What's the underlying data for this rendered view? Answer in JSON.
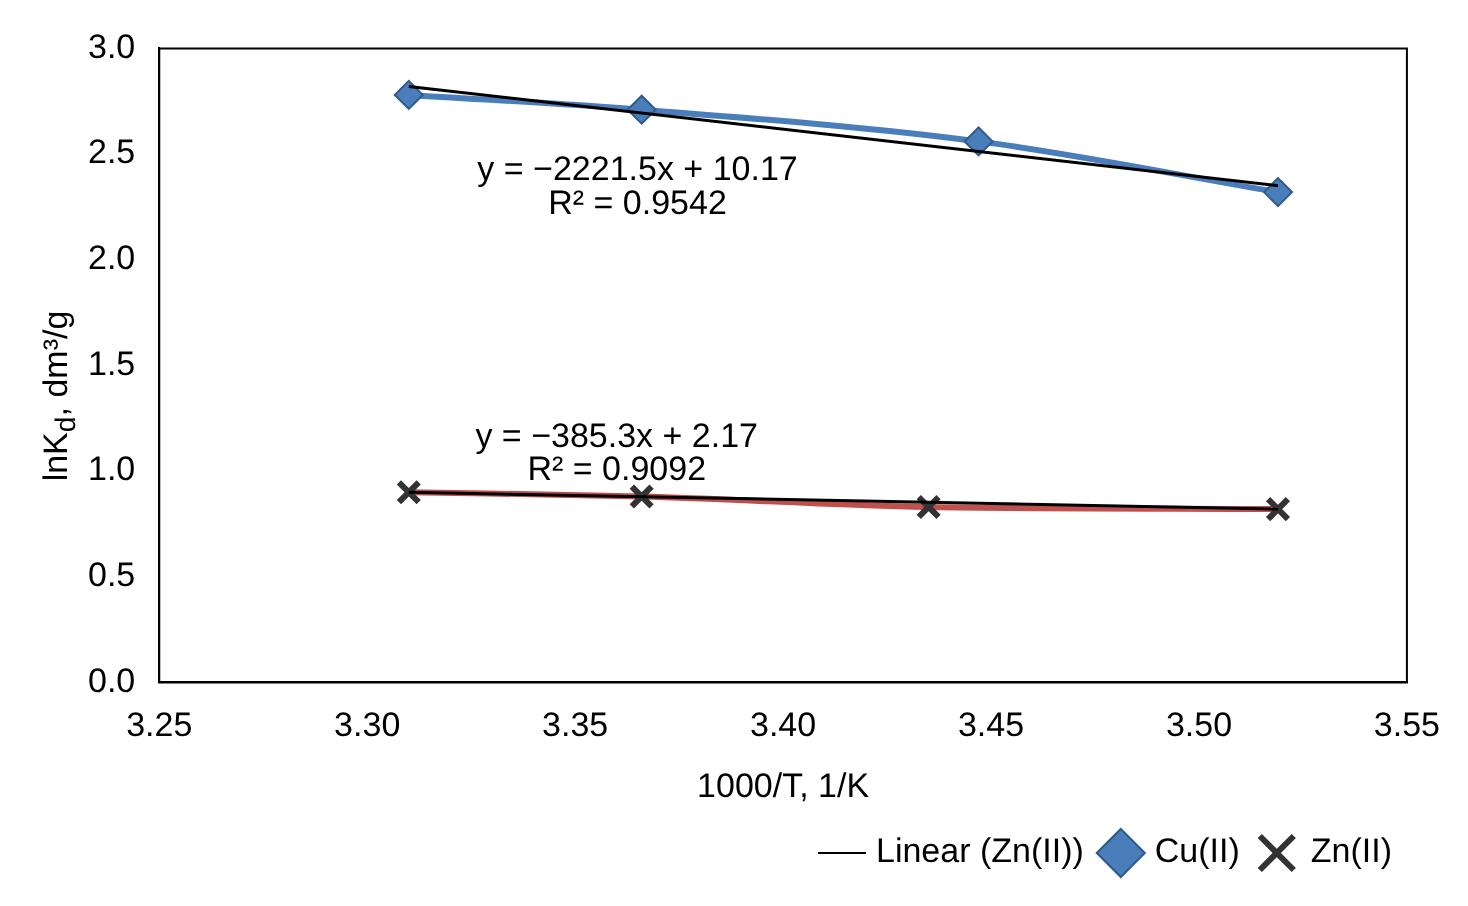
{
  "chart_data": {
    "type": "line",
    "xlabel": "1000/T, 1/K",
    "ylabel": "lnK$_{d}$, dm³/g",
    "xlim": [
      3.25,
      3.55
    ],
    "xticks": [
      3.25,
      {
        "value": 3.3,
        "label": "3.30"
      },
      3.35,
      {
        "value": 3.4,
        "label": "3.40"
      },
      3.45,
      {
        "value": 3.5,
        "label": "3.50"
      },
      3.55
    ],
    "ylim": [
      0,
      3
    ],
    "yticks": [
      {
        "value": 0,
        "label": "0.0"
      },
      0.5,
      {
        "value": 1,
        "label": "1.0"
      },
      1.5,
      {
        "value": 2,
        "label": "2.0"
      },
      2.5,
      {
        "value": 3,
        "label": "3.0"
      }
    ],
    "grid": false,
    "legend": "bottom right",
    "line_style": "solid",
    "series": [
      {
        "name": "Cu(II)",
        "color": "#4a7ebb",
        "marker": "diamond",
        "x": [
          3.31,
          3.366,
          3.447,
          3.519
        ],
        "values": [
          2.78,
          2.71,
          2.56,
          2.32
        ]
      },
      {
        "name": "Zn(II)",
        "color": "#c0504d",
        "marker": "cross",
        "x": [
          3.31,
          3.366,
          3.435,
          3.519
        ],
        "values": [
          0.9,
          0.88,
          0.83,
          0.82
        ]
      },
      {
        "color": "#000000",
        "marker": "none",
        "x": [
          3.31,
          3.519
        ],
        "values": [
          2.82,
          2.35
        ]
      },
      {
        "name": "Linear (Zn(II))",
        "color": "#000000",
        "marker": "none",
        "x": [
          3.31,
          3.519
        ],
        "values": [
          0.9,
          0.82
        ]
      }
    ],
    "annotations": [
      "y = −2221.5x + 10.17",
      "R² = 0.9542",
      "y = −385.3x + 2.17",
      "R² = 0.9092"
    ]
  }
}
